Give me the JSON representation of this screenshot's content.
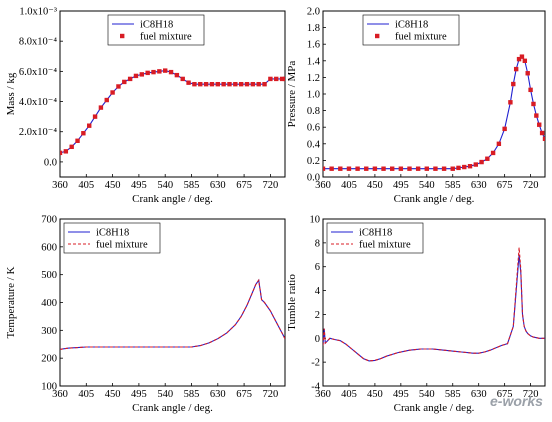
{
  "watermark": "e-works",
  "chart_data": [
    {
      "id": "mass",
      "type": "line",
      "title": "",
      "xlabel": "Crank angle / deg.",
      "ylabel": "Mass / kg",
      "xlim": [
        360,
        745
      ],
      "ylim": [
        -0.0001,
        0.001
      ],
      "xticks": [
        "360",
        "405",
        "450",
        "495",
        "540",
        "585",
        "630",
        "675",
        "720"
      ],
      "xtick_values": [
        360,
        405,
        450,
        495,
        540,
        585,
        630,
        675,
        720
      ],
      "yticks": [
        "1.0x10⁻³",
        "8.0x10⁻⁴",
        "6.0x10⁻⁴",
        "4.0x10⁻⁴",
        "2.0x10⁻⁴",
        "0.0"
      ],
      "ytick_values": [
        0.001,
        0.0008,
        0.0006,
        0.0004,
        0.0002,
        0
      ],
      "legend_position": "top-center",
      "series": [
        {
          "name": "iC8H18",
          "style": "solid",
          "color": "#1f1fd0",
          "x": [
            360,
            370,
            380,
            390,
            400,
            410,
            420,
            430,
            440,
            450,
            460,
            470,
            480,
            490,
            500,
            510,
            520,
            530,
            540,
            550,
            560,
            570,
            580,
            590,
            600,
            610,
            620,
            630,
            640,
            650,
            660,
            670,
            680,
            690,
            700,
            710,
            720,
            730,
            740,
            745
          ],
          "y": [
            6e-05,
            7e-05,
            0.0001,
            0.00014,
            0.00019,
            0.00024,
            0.0003,
            0.00036,
            0.00041,
            0.00046,
            0.0005,
            0.00053,
            0.00055,
            0.00057,
            0.00058,
            0.00059,
            0.000595,
            0.0006,
            0.000605,
            0.000595,
            0.000575,
            0.00055,
            0.000525,
            0.000515,
            0.000515,
            0.000515,
            0.000515,
            0.000515,
            0.000515,
            0.000515,
            0.000515,
            0.000515,
            0.000515,
            0.000515,
            0.000515,
            0.000515,
            0.00055,
            0.00055,
            0.00055,
            0.00055
          ]
        },
        {
          "name": "fuel mixture",
          "style": "markers",
          "color": "#d81c24",
          "x": [
            360,
            370,
            380,
            390,
            400,
            410,
            420,
            430,
            440,
            450,
            460,
            470,
            480,
            490,
            500,
            510,
            520,
            530,
            540,
            550,
            560,
            570,
            580,
            590,
            600,
            610,
            620,
            630,
            640,
            650,
            660,
            670,
            680,
            690,
            700,
            710,
            720,
            730,
            740,
            745
          ],
          "y": [
            6e-05,
            7e-05,
            0.0001,
            0.00014,
            0.00019,
            0.00024,
            0.0003,
            0.00036,
            0.00041,
            0.00046,
            0.0005,
            0.00053,
            0.00055,
            0.00057,
            0.00058,
            0.00059,
            0.000595,
            0.0006,
            0.000605,
            0.000595,
            0.000575,
            0.00055,
            0.000525,
            0.000515,
            0.000515,
            0.000515,
            0.000515,
            0.000515,
            0.000515,
            0.000515,
            0.000515,
            0.000515,
            0.000515,
            0.000515,
            0.000515,
            0.000515,
            0.00055,
            0.00055,
            0.00055,
            0.00055
          ]
        }
      ]
    },
    {
      "id": "pressure",
      "type": "line",
      "title": "",
      "xlabel": "Crank angle / deg.",
      "ylabel": "Pressure / MPa",
      "xlim": [
        360,
        745
      ],
      "ylim": [
        0,
        2.0
      ],
      "xticks": [
        "360",
        "405",
        "450",
        "495",
        "540",
        "585",
        "630",
        "675",
        "720"
      ],
      "xtick_values": [
        360,
        405,
        450,
        495,
        540,
        585,
        630,
        675,
        720
      ],
      "yticks": [
        "0.0",
        "0.2",
        "0.4",
        "0.6",
        "0.8",
        "1.0",
        "1.2",
        "1.4",
        "1.6",
        "1.8",
        "2.0"
      ],
      "ytick_values": [
        0,
        0.2,
        0.4,
        0.6,
        0.8,
        1.0,
        1.2,
        1.4,
        1.6,
        1.8,
        2.0
      ],
      "legend_position": "top-center",
      "series": [
        {
          "name": "iC8H18",
          "style": "solid",
          "color": "#1f1fd0",
          "x": [
            360,
            375,
            390,
            405,
            420,
            435,
            450,
            465,
            480,
            495,
            510,
            525,
            540,
            555,
            570,
            585,
            595,
            605,
            615,
            625,
            635,
            645,
            655,
            665,
            675,
            685,
            690,
            695,
            700,
            705,
            710,
            715,
            720,
            725,
            730,
            735,
            740,
            745
          ],
          "y": [
            0.1,
            0.1,
            0.1,
            0.1,
            0.1,
            0.1,
            0.1,
            0.1,
            0.1,
            0.1,
            0.1,
            0.1,
            0.1,
            0.1,
            0.1,
            0.1,
            0.11,
            0.12,
            0.13,
            0.15,
            0.18,
            0.22,
            0.29,
            0.4,
            0.58,
            0.9,
            1.12,
            1.3,
            1.42,
            1.45,
            1.4,
            1.25,
            1.05,
            0.88,
            0.74,
            0.63,
            0.53,
            0.46
          ]
        },
        {
          "name": "fuel mixture",
          "style": "markers",
          "color": "#d81c24",
          "x": [
            360,
            375,
            390,
            405,
            420,
            435,
            450,
            465,
            480,
            495,
            510,
            525,
            540,
            555,
            570,
            585,
            595,
            605,
            615,
            625,
            635,
            645,
            655,
            665,
            675,
            685,
            690,
            695,
            700,
            705,
            710,
            715,
            720,
            725,
            730,
            735,
            740,
            745
          ],
          "y": [
            0.1,
            0.1,
            0.1,
            0.1,
            0.1,
            0.1,
            0.1,
            0.1,
            0.1,
            0.1,
            0.1,
            0.1,
            0.1,
            0.1,
            0.1,
            0.1,
            0.11,
            0.12,
            0.13,
            0.15,
            0.18,
            0.22,
            0.29,
            0.4,
            0.58,
            0.9,
            1.12,
            1.3,
            1.42,
            1.45,
            1.4,
            1.25,
            1.05,
            0.88,
            0.74,
            0.63,
            0.53,
            0.46
          ]
        }
      ]
    },
    {
      "id": "temperature",
      "type": "line",
      "title": "",
      "xlabel": "Crank angle / deg.",
      "ylabel": "Temperature / K",
      "xlim": [
        360,
        745
      ],
      "ylim": [
        100,
        700
      ],
      "xticks": [
        "360",
        "405",
        "450",
        "495",
        "540",
        "585",
        "630",
        "675",
        "720"
      ],
      "xtick_values": [
        360,
        405,
        450,
        495,
        540,
        585,
        630,
        675,
        720
      ],
      "yticks": [
        "100",
        "200",
        "300",
        "400",
        "500",
        "600",
        "700"
      ],
      "ytick_values": [
        100,
        200,
        300,
        400,
        500,
        600,
        700
      ],
      "legend_position": "top-left",
      "series": [
        {
          "name": "iC8H18",
          "style": "solid",
          "color": "#1f1fd0",
          "x": [
            360,
            375,
            390,
            405,
            420,
            450,
            480,
            510,
            540,
            570,
            585,
            600,
            615,
            630,
            645,
            660,
            670,
            680,
            690,
            695,
            700,
            705,
            710,
            720,
            730,
            740,
            745
          ],
          "y": [
            232,
            236,
            238,
            240,
            240,
            240,
            240,
            240,
            240,
            240,
            240,
            245,
            255,
            270,
            290,
            320,
            350,
            390,
            440,
            465,
            480,
            410,
            400,
            370,
            330,
            290,
            270
          ]
        },
        {
          "name": "fuel mixture",
          "style": "dashed",
          "color": "#d81c24",
          "x": [
            360,
            375,
            390,
            405,
            420,
            450,
            480,
            510,
            540,
            570,
            585,
            600,
            615,
            630,
            645,
            660,
            670,
            680,
            690,
            695,
            700,
            705,
            710,
            720,
            730,
            740,
            745
          ],
          "y": [
            232,
            236,
            238,
            240,
            240,
            240,
            240,
            240,
            240,
            240,
            240,
            245,
            255,
            270,
            290,
            320,
            350,
            390,
            440,
            465,
            480,
            410,
            400,
            370,
            330,
            290,
            270
          ]
        }
      ]
    },
    {
      "id": "tumble",
      "type": "line",
      "title": "",
      "xlabel": "Crank angle / deg.",
      "ylabel": "Tumble ratio",
      "xlim": [
        360,
        745
      ],
      "ylim": [
        -4,
        10
      ],
      "xticks": [
        "360",
        "405",
        "450",
        "495",
        "540",
        "585",
        "630",
        "675",
        "720"
      ],
      "xtick_values": [
        360,
        405,
        450,
        495,
        540,
        585,
        630,
        675,
        720
      ],
      "yticks": [
        "-4",
        "-2",
        "0",
        "2",
        "4",
        "6",
        "8",
        "10"
      ],
      "ytick_values": [
        -4,
        -2,
        0,
        2,
        4,
        6,
        8,
        10
      ],
      "legend_position": "top-left",
      "series": [
        {
          "name": "iC8H18",
          "style": "solid",
          "color": "#1f1fd0",
          "x": [
            360,
            362,
            364,
            368,
            372,
            380,
            390,
            400,
            410,
            420,
            430,
            440,
            450,
            460,
            470,
            480,
            490,
            500,
            510,
            520,
            530,
            540,
            550,
            560,
            570,
            580,
            590,
            600,
            610,
            620,
            630,
            640,
            650,
            660,
            670,
            680,
            690,
            700,
            703,
            706,
            709,
            712,
            715,
            720,
            725,
            730,
            735,
            740,
            745
          ],
          "y": [
            -0.6,
            0.8,
            -0.4,
            -0.2,
            0,
            -0.1,
            -0.2,
            -0.5,
            -0.9,
            -1.3,
            -1.7,
            -1.9,
            -1.85,
            -1.7,
            -1.5,
            -1.35,
            -1.2,
            -1.1,
            -1.0,
            -0.95,
            -0.9,
            -0.9,
            -0.9,
            -0.95,
            -1.0,
            -1.05,
            -1.1,
            -1.15,
            -1.2,
            -1.25,
            -1.25,
            -1.15,
            -1.0,
            -0.8,
            -0.6,
            -0.45,
            1.0,
            7.0,
            5.5,
            2.0,
            1.0,
            0.6,
            0.4,
            0.2,
            0.1,
            0.05,
            0.0,
            0.0,
            0.0
          ]
        },
        {
          "name": "fuel mixture",
          "style": "dashed",
          "color": "#d81c24",
          "x": [
            360,
            362,
            364,
            368,
            372,
            380,
            390,
            400,
            410,
            420,
            430,
            440,
            450,
            460,
            470,
            480,
            490,
            500,
            510,
            520,
            530,
            540,
            550,
            560,
            570,
            580,
            590,
            600,
            610,
            620,
            630,
            640,
            650,
            660,
            670,
            680,
            690,
            700,
            703,
            706,
            709,
            712,
            715,
            720,
            725,
            730,
            735,
            740,
            745
          ],
          "y": [
            -0.6,
            0.8,
            -0.4,
            -0.2,
            0,
            -0.1,
            -0.2,
            -0.5,
            -0.9,
            -1.3,
            -1.7,
            -1.9,
            -1.85,
            -1.7,
            -1.5,
            -1.35,
            -1.2,
            -1.1,
            -1.0,
            -0.95,
            -0.9,
            -0.9,
            -0.9,
            -0.95,
            -1.0,
            -1.05,
            -1.1,
            -1.15,
            -1.2,
            -1.25,
            -1.25,
            -1.15,
            -1.0,
            -0.8,
            -0.6,
            -0.45,
            1.0,
            7.6,
            5.8,
            2.0,
            1.0,
            0.6,
            0.4,
            0.2,
            0.1,
            0.05,
            0.0,
            0.0,
            0.0
          ]
        }
      ]
    }
  ]
}
